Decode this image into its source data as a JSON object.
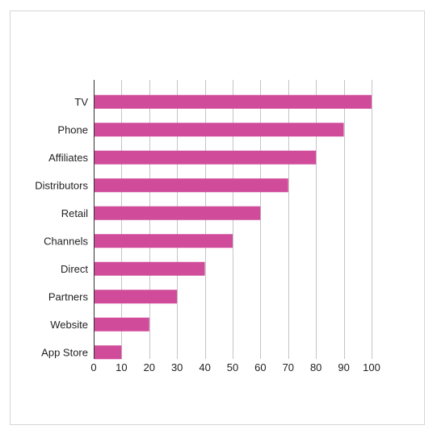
{
  "chart_data": {
    "type": "bar",
    "orientation": "horizontal",
    "categories": [
      "TV",
      "Phone",
      "Affiliates",
      "Distributors",
      "Retail",
      "Channels",
      "Direct",
      "Partners",
      "Website",
      "App Store"
    ],
    "values": [
      100,
      90,
      80,
      70,
      60,
      50,
      40,
      30,
      20,
      10
    ],
    "xlim": [
      0,
      100
    ],
    "xticks": [
      0,
      10,
      20,
      30,
      40,
      50,
      60,
      70,
      80,
      90,
      100
    ],
    "grid": true,
    "legend": "none",
    "bar_color": "#d04c9a"
  }
}
